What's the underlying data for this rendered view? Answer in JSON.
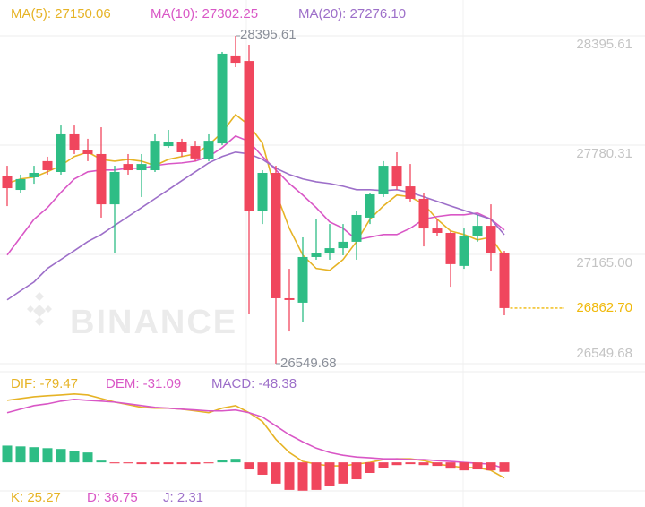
{
  "chart_data": [
    {
      "type": "candlestick",
      "up_color": "#2ebd85",
      "down_color": "#f0465d",
      "open": [
        27604,
        27528,
        27599,
        27690,
        27629,
        27841,
        27755,
        27730,
        27447,
        27674,
        27639,
        27639,
        27775,
        27800,
        27775,
        27700,
        27790,
        28285,
        28254,
        27412,
        27624,
        26918,
        26893,
        27150,
        27175,
        27200,
        27236,
        27372,
        27503,
        27664,
        27548,
        27478,
        27311,
        27286,
        27100,
        27271,
        27326,
        27175
      ],
      "high": [
        27664,
        27614,
        27664,
        27715,
        27891,
        27891,
        27816,
        27881,
        27664,
        27730,
        27730,
        27841,
        27866,
        27816,
        27805,
        27841,
        28305,
        28395.61,
        28345,
        27639,
        27664,
        27084,
        27261,
        27362,
        27336,
        27336,
        27412,
        27513,
        27690,
        27740,
        27674,
        27513,
        27362,
        27296,
        27311,
        27387,
        27447,
        27185
      ],
      "low": [
        27437,
        27513,
        27563,
        27614,
        27614,
        27730,
        27690,
        27372,
        27175,
        27614,
        27488,
        27629,
        27765,
        27715,
        27690,
        27690,
        27780,
        28219,
        26832,
        27336,
        26549.68,
        26731,
        26782,
        27135,
        27135,
        27160,
        27135,
        27336,
        27488,
        27528,
        27463,
        27210,
        27271,
        26983,
        27084,
        27236,
        27069,
        26822
      ],
      "close": [
        27538,
        27589,
        27624,
        27639,
        27841,
        27750,
        27730,
        27447,
        27629,
        27639,
        27674,
        27805,
        27800,
        27740,
        27705,
        27805,
        28295,
        28244,
        27412,
        27624,
        26918,
        26908,
        27150,
        27175,
        27200,
        27236,
        27387,
        27503,
        27664,
        27548,
        27478,
        27311,
        27286,
        27110,
        27271,
        27326,
        27175,
        26862.7
      ],
      "last_label": "26862.70",
      "last_color": "#f0b90b",
      "watermark": "BINANCE",
      "ylim": [
        26549.68,
        28395.61
      ],
      "yticks": [
        28395.61,
        27780.31,
        {
          "value": 27165,
          "label": "27165.00"
        },
        26549.68
      ],
      "grid": true,
      "series": [
        {
          "name": "MA(5): 27150.06",
          "color": "#e6b325",
          "values": [
            27564,
            27590,
            27600,
            27630,
            27665,
            27716,
            27741,
            27700,
            27690,
            27700,
            27690,
            27665,
            27700,
            27716,
            27731,
            27781,
            27852,
            27952,
            27892,
            27791,
            27514,
            27312,
            27161,
            27086,
            27075,
            27136,
            27237,
            27363,
            27438,
            27499,
            27489,
            27448,
            27363,
            27297,
            27277,
            27247,
            27262,
            27150.06
          ]
        },
        {
          "name": "MA(10): 27302.25",
          "color": "#d957c6",
          "values": [
            27161,
            27262,
            27363,
            27428,
            27514,
            27590,
            27630,
            27640,
            27640,
            27650,
            27650,
            27665,
            27675,
            27680,
            27690,
            27716,
            27766,
            27832,
            27801,
            27716,
            27640,
            27564,
            27499,
            27428,
            27348,
            27312,
            27247,
            27262,
            27277,
            27277,
            27312,
            27363,
            27378,
            27388,
            27388,
            27398,
            27363,
            27302.25
          ]
        },
        {
          "name": "MA(20): 27276.10",
          "color": "#9d6fc9",
          "values": [
            26909,
            26960,
            27010,
            27086,
            27136,
            27186,
            27237,
            27277,
            27328,
            27378,
            27428,
            27479,
            27529,
            27580,
            27630,
            27680,
            27716,
            27741,
            27731,
            27700,
            27650,
            27615,
            27590,
            27574,
            27564,
            27549,
            27529,
            27529,
            27524,
            27529,
            27514,
            27489,
            27464,
            27438,
            27413,
            27388,
            27363,
            27276.1
          ]
        }
      ]
    },
    {
      "type": "macd",
      "up_color": "#2ebd85",
      "down_color": "#f0465d",
      "ylim": [
        -145,
        360
      ],
      "series": [
        {
          "name": "DIF: -79.47",
          "color": "#e6b325",
          "values": [
            315,
            324,
            333,
            338,
            342,
            347,
            342,
            324,
            306,
            293,
            279,
            275,
            275,
            270,
            261,
            252,
            275,
            288,
            252,
            207,
            117,
            50,
            5,
            -9,
            -18,
            -18,
            -9,
            0,
            14,
            18,
            18,
            9,
            -9,
            -18,
            -27,
            -27,
            -41,
            -79.47
          ]
        },
        {
          "name": "DEM: -31.09",
          "color": "#d957c6",
          "values": [
            252,
            270,
            288,
            297,
            311,
            320,
            315,
            311,
            306,
            297,
            288,
            279,
            275,
            270,
            266,
            261,
            261,
            266,
            252,
            230,
            185,
            140,
            104,
            72,
            50,
            36,
            27,
            23,
            18,
            18,
            14,
            14,
            9,
            5,
            0,
            -5,
            -9,
            -31.09
          ]
        },
        {
          "name": "MACD: -48.38",
          "color": "#9d6fc9",
          "style": "bar",
          "values": [
            85,
            81,
            77,
            72,
            68,
            59,
            50,
            9,
            -5,
            -5,
            -9,
            -9,
            -9,
            -9,
            -9,
            -5,
            14,
            18,
            -36,
            -63,
            -108,
            -140,
            -144,
            -140,
            -122,
            -108,
            -86,
            -54,
            -27,
            -14,
            -9,
            -14,
            -18,
            -32,
            -41,
            -36,
            -41,
            -48.38
          ]
        }
      ]
    },
    {
      "type": "kdj",
      "series": [
        {
          "name": "K: 25.27",
          "color": "#e6b325"
        },
        {
          "name": "D: 36.75",
          "color": "#d957c6"
        },
        {
          "name": "J: 2.31",
          "color": "#9d6fc9"
        }
      ]
    }
  ]
}
